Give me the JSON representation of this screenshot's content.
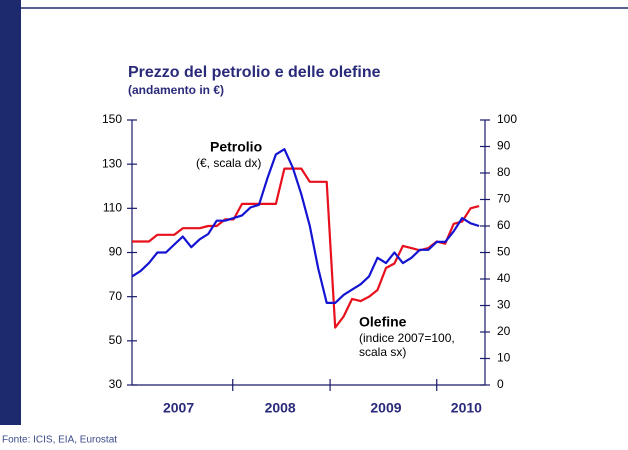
{
  "chart_data": {
    "type": "line",
    "title": "Prezzo del petrolio e delle olefine",
    "subtitle": "(andamento in €)",
    "source": "Fonte: ICIS, EIA, Eurostat",
    "x": [
      0,
      1,
      2,
      3,
      4,
      5,
      6,
      7,
      8,
      9,
      10,
      11,
      12,
      13,
      14,
      15,
      16,
      17,
      18,
      19,
      20,
      21,
      22,
      23,
      24,
      25,
      26,
      27,
      28,
      29,
      30,
      31,
      32,
      33,
      34,
      35,
      36,
      37,
      38,
      39,
      40,
      41
    ],
    "xlim": [
      0,
      41.7
    ],
    "xticks": [
      {
        "value": 5.5,
        "label": "2007"
      },
      {
        "value": 17.5,
        "label": "2008"
      },
      {
        "value": 30,
        "label": "2009"
      },
      {
        "value": 39.5,
        "label": "2010"
      }
    ],
    "year_boundaries": [
      11.9,
      23.4,
      36
    ],
    "ylim": [
      30,
      150
    ],
    "yticks": [
      30,
      50,
      70,
      90,
      110,
      130,
      150
    ],
    "y2lim": [
      0,
      100
    ],
    "y2ticks": [
      0,
      10,
      20,
      30,
      40,
      50,
      60,
      70,
      80,
      90,
      100
    ],
    "series": [
      {
        "name": "Olefine",
        "color": "#e8101c",
        "axis": "y",
        "values": [
          95,
          95,
          95,
          98,
          98,
          98,
          101,
          101,
          101,
          102,
          102,
          105,
          105,
          112,
          112,
          112,
          112,
          112,
          128,
          128,
          128,
          122,
          122,
          122,
          56,
          61,
          69,
          68,
          70,
          73,
          83,
          85,
          93,
          92,
          91,
          92,
          95,
          94,
          103,
          104,
          110,
          111
        ]
      },
      {
        "name": "Petrolio",
        "color": "#1414d2",
        "axis": "y2",
        "values": [
          41,
          43,
          46,
          50,
          50,
          53,
          56,
          52,
          55,
          57,
          62,
          62,
          63,
          64,
          67,
          68,
          78,
          87,
          89,
          82,
          72,
          60,
          44,
          31,
          31,
          34,
          36,
          38,
          41,
          48,
          46,
          50,
          46,
          48,
          51,
          51,
          54,
          54,
          58,
          63,
          61,
          60
        ]
      }
    ],
    "annotations": [
      {
        "title": "Petrolio",
        "lines": [
          "(€, scala dx)"
        ]
      },
      {
        "title": "Olefine",
        "lines": [
          "(indice 2007=100,",
          "scala sx)"
        ]
      }
    ]
  }
}
